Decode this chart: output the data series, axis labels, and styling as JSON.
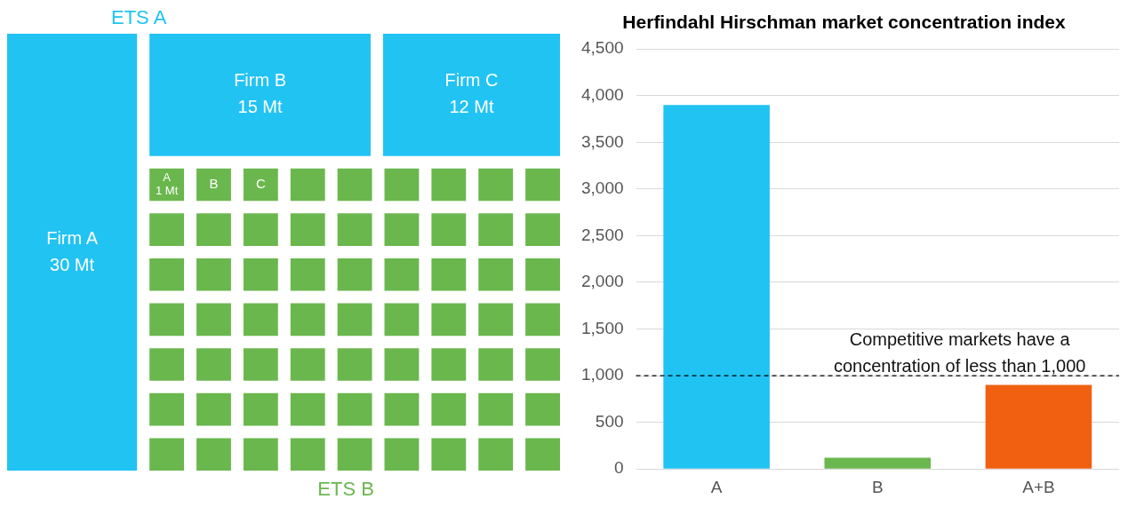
{
  "chart_data": [
    {
      "type": "other",
      "categories": [
        "Firm A",
        "Firm B",
        "Firm C",
        "A",
        "B",
        "C",
        null,
        null,
        null,
        null,
        null,
        null,
        null,
        null,
        null,
        null,
        null,
        null,
        null,
        null,
        null,
        null,
        null,
        null,
        null,
        null,
        null,
        null,
        null,
        null,
        null,
        null,
        null,
        null,
        null,
        null,
        null,
        null,
        null,
        null,
        null,
        null,
        null,
        null,
        null,
        null,
        null,
        null,
        null,
        null,
        null,
        null,
        null,
        null,
        null,
        null,
        null,
        null,
        null,
        null,
        null,
        null,
        null,
        null,
        null,
        null
      ],
      "series": [
        {
          "name": "ETS A",
          "color": "#21c3f3",
          "values": [
            30,
            15,
            12,
            null,
            null,
            null,
            null,
            null,
            null,
            null,
            null,
            null,
            null,
            null,
            null,
            null,
            null,
            null,
            null,
            null,
            null,
            null,
            null,
            null,
            null,
            null,
            null,
            null,
            null,
            null,
            null,
            null,
            null,
            null,
            null,
            null,
            null,
            null,
            null,
            null,
            null,
            null,
            null,
            null,
            null,
            null,
            null,
            null,
            null,
            null,
            null,
            null,
            null,
            null,
            null,
            null,
            null,
            null,
            null,
            null,
            null,
            null,
            null,
            null,
            null,
            null
          ],
          "value_labels": [
            "30 Mt",
            "15 Mt",
            "12 Mt",
            null,
            null,
            null,
            null,
            null,
            null,
            null,
            null,
            null,
            null,
            null,
            null,
            null,
            null,
            null,
            null,
            null,
            null,
            null,
            null,
            null,
            null,
            null,
            null,
            null,
            null,
            null,
            null,
            null,
            null,
            null,
            null,
            null,
            null,
            null,
            null,
            null,
            null,
            null,
            null,
            null,
            null,
            null,
            null,
            null,
            null,
            null,
            null,
            null,
            null,
            null,
            null,
            null,
            null,
            null,
            null,
            null,
            null,
            null,
            null,
            null,
            null,
            null
          ]
        },
        {
          "name": "ETS B",
          "color": "#6ab74e",
          "values": [
            null,
            null,
            null,
            1,
            null,
            null,
            null,
            null,
            null,
            null,
            null,
            null,
            null,
            null,
            null,
            null,
            null,
            null,
            null,
            null,
            null,
            null,
            null,
            null,
            null,
            null,
            null,
            null,
            null,
            null,
            null,
            null,
            null,
            null,
            null,
            null,
            null,
            null,
            null,
            null,
            null,
            null,
            null,
            null,
            null,
            null,
            null,
            null,
            null,
            null,
            null,
            null,
            null,
            null,
            null,
            null,
            null,
            null,
            null,
            null,
            null,
            null,
            null,
            null,
            null,
            null
          ],
          "value_labels": [
            null,
            null,
            null,
            "1 Mt",
            null,
            null,
            null,
            null,
            null,
            null,
            null,
            null,
            null,
            null,
            null,
            null,
            null,
            null,
            null,
            null,
            null,
            null,
            null,
            null,
            null,
            null,
            null,
            null,
            null,
            null,
            null,
            null,
            null,
            null,
            null,
            null,
            null,
            null,
            null,
            null,
            null,
            null,
            null,
            null,
            null,
            null,
            null,
            null,
            null,
            null,
            null,
            null,
            null,
            null,
            null,
            null,
            null,
            null,
            null,
            null,
            null,
            null,
            null,
            null,
            null,
            null
          ]
        }
      ]
    },
    {
      "type": "bar",
      "title": "Herfindahl Hirschman market concentration index",
      "categories": [
        "A",
        "B",
        "A+B"
      ],
      "values": [
        3900,
        120,
        900
      ],
      "colors": [
        "#21c3f3",
        "#6ab74e",
        "#f06010"
      ],
      "ylim": [
        0,
        4500
      ],
      "yticks": [
        0,
        500,
        {
          "value": 1000,
          "label": "1,000"
        },
        {
          "value": 1500,
          "label": "1,500"
        },
        {
          "value": 2000,
          "label": "2,000"
        },
        {
          "value": 2500,
          "label": "2,500"
        },
        {
          "value": 3000,
          "label": "3,000"
        },
        {
          "value": 3500,
          "label": "3,500"
        },
        {
          "value": 4000,
          "label": "4,000"
        },
        {
          "value": 4500,
          "label": "4,500"
        }
      ],
      "grid": "y",
      "legend": false,
      "ref_lines": [
        {
          "axis": "y",
          "value": 1000,
          "label": "Competitive markets have a concentration of less than 1,000",
          "line_style": "dashed",
          "color": "#000000"
        }
      ]
    }
  ]
}
